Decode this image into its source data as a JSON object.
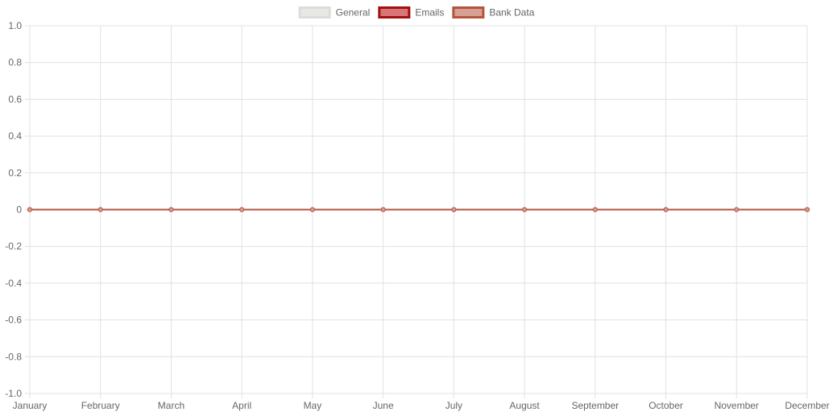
{
  "chart_data": {
    "type": "line",
    "categories": [
      "January",
      "February",
      "March",
      "April",
      "May",
      "June",
      "July",
      "August",
      "September",
      "October",
      "November",
      "December"
    ],
    "series": [
      {
        "name": "General",
        "values": [
          0,
          0,
          0,
          0,
          0,
          0,
          0,
          0,
          0,
          0,
          0,
          0
        ],
        "color": "#dcdcdc",
        "fill": "#e8e8e4"
      },
      {
        "name": "Emails",
        "values": [
          0,
          0,
          0,
          0,
          0,
          0,
          0,
          0,
          0,
          0,
          0,
          0
        ],
        "color": "#a30f0f",
        "fill": "#d97575"
      },
      {
        "name": "Bank Data",
        "values": [
          0,
          0,
          0,
          0,
          0,
          0,
          0,
          0,
          0,
          0,
          0,
          0
        ],
        "color": "#b5543c",
        "fill": "#d6a092"
      }
    ],
    "ylim": [
      -1.0,
      1.0
    ],
    "yticks": [
      "1.0",
      "0.8",
      "0.6",
      "0.4",
      "0.2",
      "0",
      "-0.2",
      "-0.4",
      "-0.6",
      "-0.8",
      "-1.0"
    ],
    "grid": true,
    "legend_position": "top-center",
    "title": "",
    "xlabel": "",
    "ylabel": ""
  }
}
